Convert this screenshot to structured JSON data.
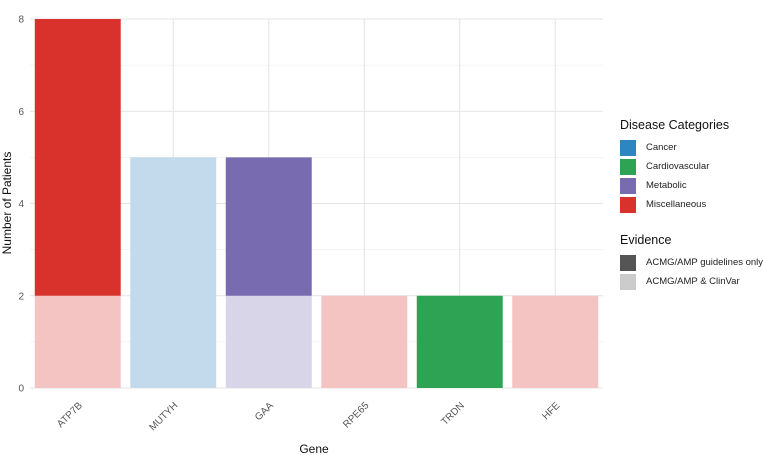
{
  "chart_data": {
    "type": "bar",
    "stacked": true,
    "xlabel": "Gene",
    "ylabel": "Number of Patients",
    "categories": [
      "ATP7B",
      "MUTYH",
      "GAA",
      "RPE65",
      "TRDN",
      "HFE"
    ],
    "ylim": [
      0,
      8
    ],
    "yticks": [
      "0",
      "2",
      "4",
      "6",
      "8"
    ],
    "grid": true,
    "bars": [
      {
        "gene": "ATP7B",
        "category": "Miscellaneous",
        "clinvar_and_acmg": 2,
        "acmg_only": 6,
        "total": 8
      },
      {
        "gene": "MUTYH",
        "category": "Cancer",
        "clinvar_and_acmg": 5,
        "acmg_only": 0,
        "total": 5
      },
      {
        "gene": "GAA",
        "category": "Metabolic",
        "clinvar_and_acmg": 2,
        "acmg_only": 3,
        "total": 5
      },
      {
        "gene": "RPE65",
        "category": "Miscellaneous",
        "clinvar_and_acmg": 2,
        "acmg_only": 0,
        "total": 2
      },
      {
        "gene": "TRDN",
        "category": "Cardiovascular",
        "clinvar_and_acmg": 0,
        "acmg_only": 2,
        "total": 2
      },
      {
        "gene": "HFE",
        "category": "Miscellaneous",
        "clinvar_and_acmg": 2,
        "acmg_only": 0,
        "total": 2
      }
    ],
    "legend_position": "right",
    "legend": {
      "categories_title": "Disease Categories",
      "categories": [
        {
          "label": "Cancer",
          "color": "#2E86C1"
        },
        {
          "label": "Cardiovascular",
          "color": "#2EA353"
        },
        {
          "label": "Metabolic",
          "color": "#786BAF"
        },
        {
          "label": "Miscellaneous",
          "color": "#D9312B"
        }
      ],
      "evidence_title": "Evidence",
      "evidence": [
        {
          "label": "ACMG/AMP guidelines only",
          "color": "#555555"
        },
        {
          "label": "ACMG/AMP & ClinVar",
          "color": "#CCCCCC"
        }
      ]
    },
    "light_colors": {
      "Cancer": "#C3DAEC",
      "Cardiovascular": "#C2E5CB",
      "Metabolic": "#D8D5E8",
      "Miscellaneous": "#F4C4C2"
    }
  }
}
